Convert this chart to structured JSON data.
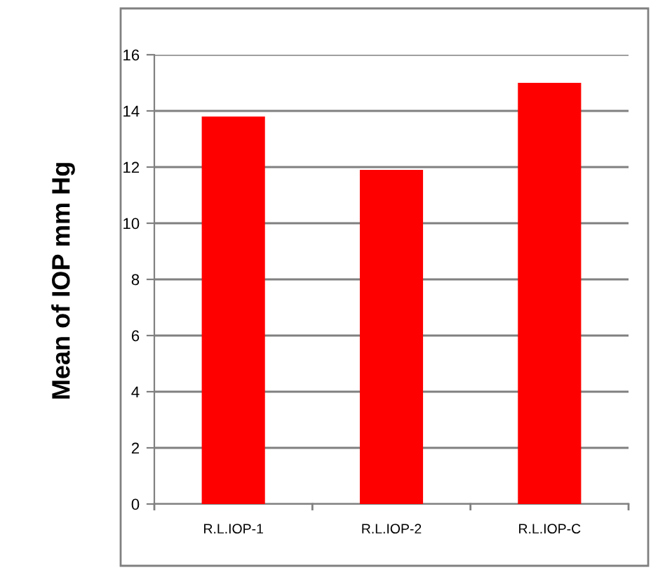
{
  "chart_data": {
    "type": "bar",
    "ylabel": "Mean of IOP mm Hg",
    "categories": [
      "R.L.IOP-1",
      "R.L.IOP-2",
      "R.L.IOP-C"
    ],
    "values": [
      13.8,
      11.9,
      15.0
    ],
    "color": "#ff0000",
    "ylim": [
      0,
      16
    ],
    "yticks": [
      0,
      2,
      4,
      6,
      8,
      10,
      12,
      14,
      16
    ],
    "grid": "y",
    "legend": false
  }
}
